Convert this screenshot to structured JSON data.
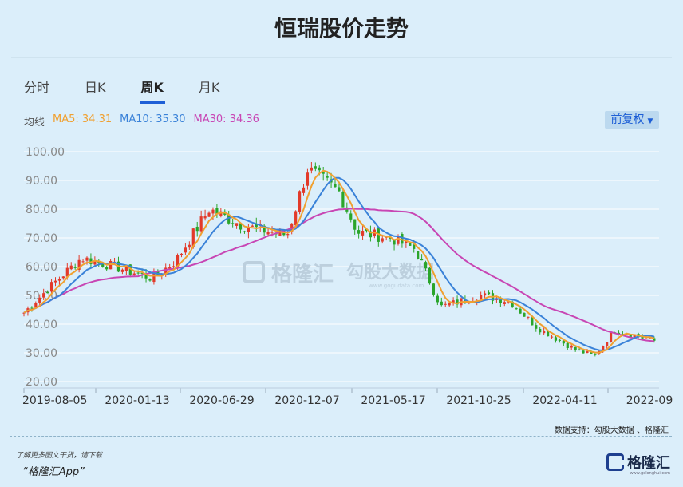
{
  "title": "恒瑞股价走势",
  "tabs": [
    {
      "label": "分时",
      "active": false
    },
    {
      "label": "日K",
      "active": false
    },
    {
      "label": "周K",
      "active": true
    },
    {
      "label": "月K",
      "active": false
    }
  ],
  "legend": {
    "prefix": "均线",
    "ma5": "MA5: 34.31",
    "ma10": "MA10: 35.30",
    "ma30": "MA30: 34.36"
  },
  "adjust_label": "前复权",
  "colors": {
    "up": "#e23a2a",
    "down": "#2aa52a",
    "ma5": "#f0a030",
    "ma10": "#3a82d8",
    "ma30": "#c846b4",
    "accent": "#1e5fd6"
  },
  "watermark": {
    "center_text": "格隆汇",
    "right_text": "勾股大数据",
    "right_url": "www.gogudata.com"
  },
  "source": "数据支持：勾股大数据 、格隆汇",
  "download_line1": "了解更多图文干货，请下载",
  "download_line2": "“格隆汇App”",
  "brand": "格隆汇",
  "brand_sub": "www.gelonghui.com",
  "chart_data": {
    "type": "candlestick",
    "title": "恒瑞股价走势",
    "ylim": [
      20,
      100
    ],
    "yticks": [
      "100.00",
      "90.00",
      "80.00",
      "70.00",
      "60.00",
      "50.00",
      "40.00",
      "30.00",
      "20.00"
    ],
    "xticks": [
      "2019-08-05",
      "2020-01-13",
      "2020-06-29",
      "2020-12-07",
      "2021-05-17",
      "2021-10-25",
      "2022-04-11",
      "2022-09"
    ],
    "grid": true,
    "key_close_points": [
      {
        "x": "2019-08-05",
        "y": 44
      },
      {
        "x": "2019-10-01",
        "y": 55
      },
      {
        "x": "2019-11-15",
        "y": 63
      },
      {
        "x": "2020-01-13",
        "y": 60
      },
      {
        "x": "2020-03-20",
        "y": 56
      },
      {
        "x": "2020-05-01",
        "y": 62
      },
      {
        "x": "2020-06-29",
        "y": 80
      },
      {
        "x": "2020-09-01",
        "y": 74
      },
      {
        "x": "2020-11-15",
        "y": 71
      },
      {
        "x": "2020-12-21",
        "y": 94
      },
      {
        "x": "2021-02-15",
        "y": 86
      },
      {
        "x": "2021-03-20",
        "y": 72
      },
      {
        "x": "2021-05-17",
        "y": 70
      },
      {
        "x": "2021-07-01",
        "y": 66
      },
      {
        "x": "2021-08-15",
        "y": 46
      },
      {
        "x": "2021-10-25",
        "y": 50
      },
      {
        "x": "2021-12-15",
        "y": 48
      },
      {
        "x": "2022-02-01",
        "y": 39
      },
      {
        "x": "2022-04-11",
        "y": 31
      },
      {
        "x": "2022-05-15",
        "y": 29
      },
      {
        "x": "2022-06-20",
        "y": 38
      },
      {
        "x": "2022-09-01",
        "y": 34
      }
    ],
    "series": [
      {
        "name": "MA5",
        "last": 34.31
      },
      {
        "name": "MA10",
        "last": 35.3
      },
      {
        "name": "MA30",
        "last": 34.36
      }
    ]
  }
}
